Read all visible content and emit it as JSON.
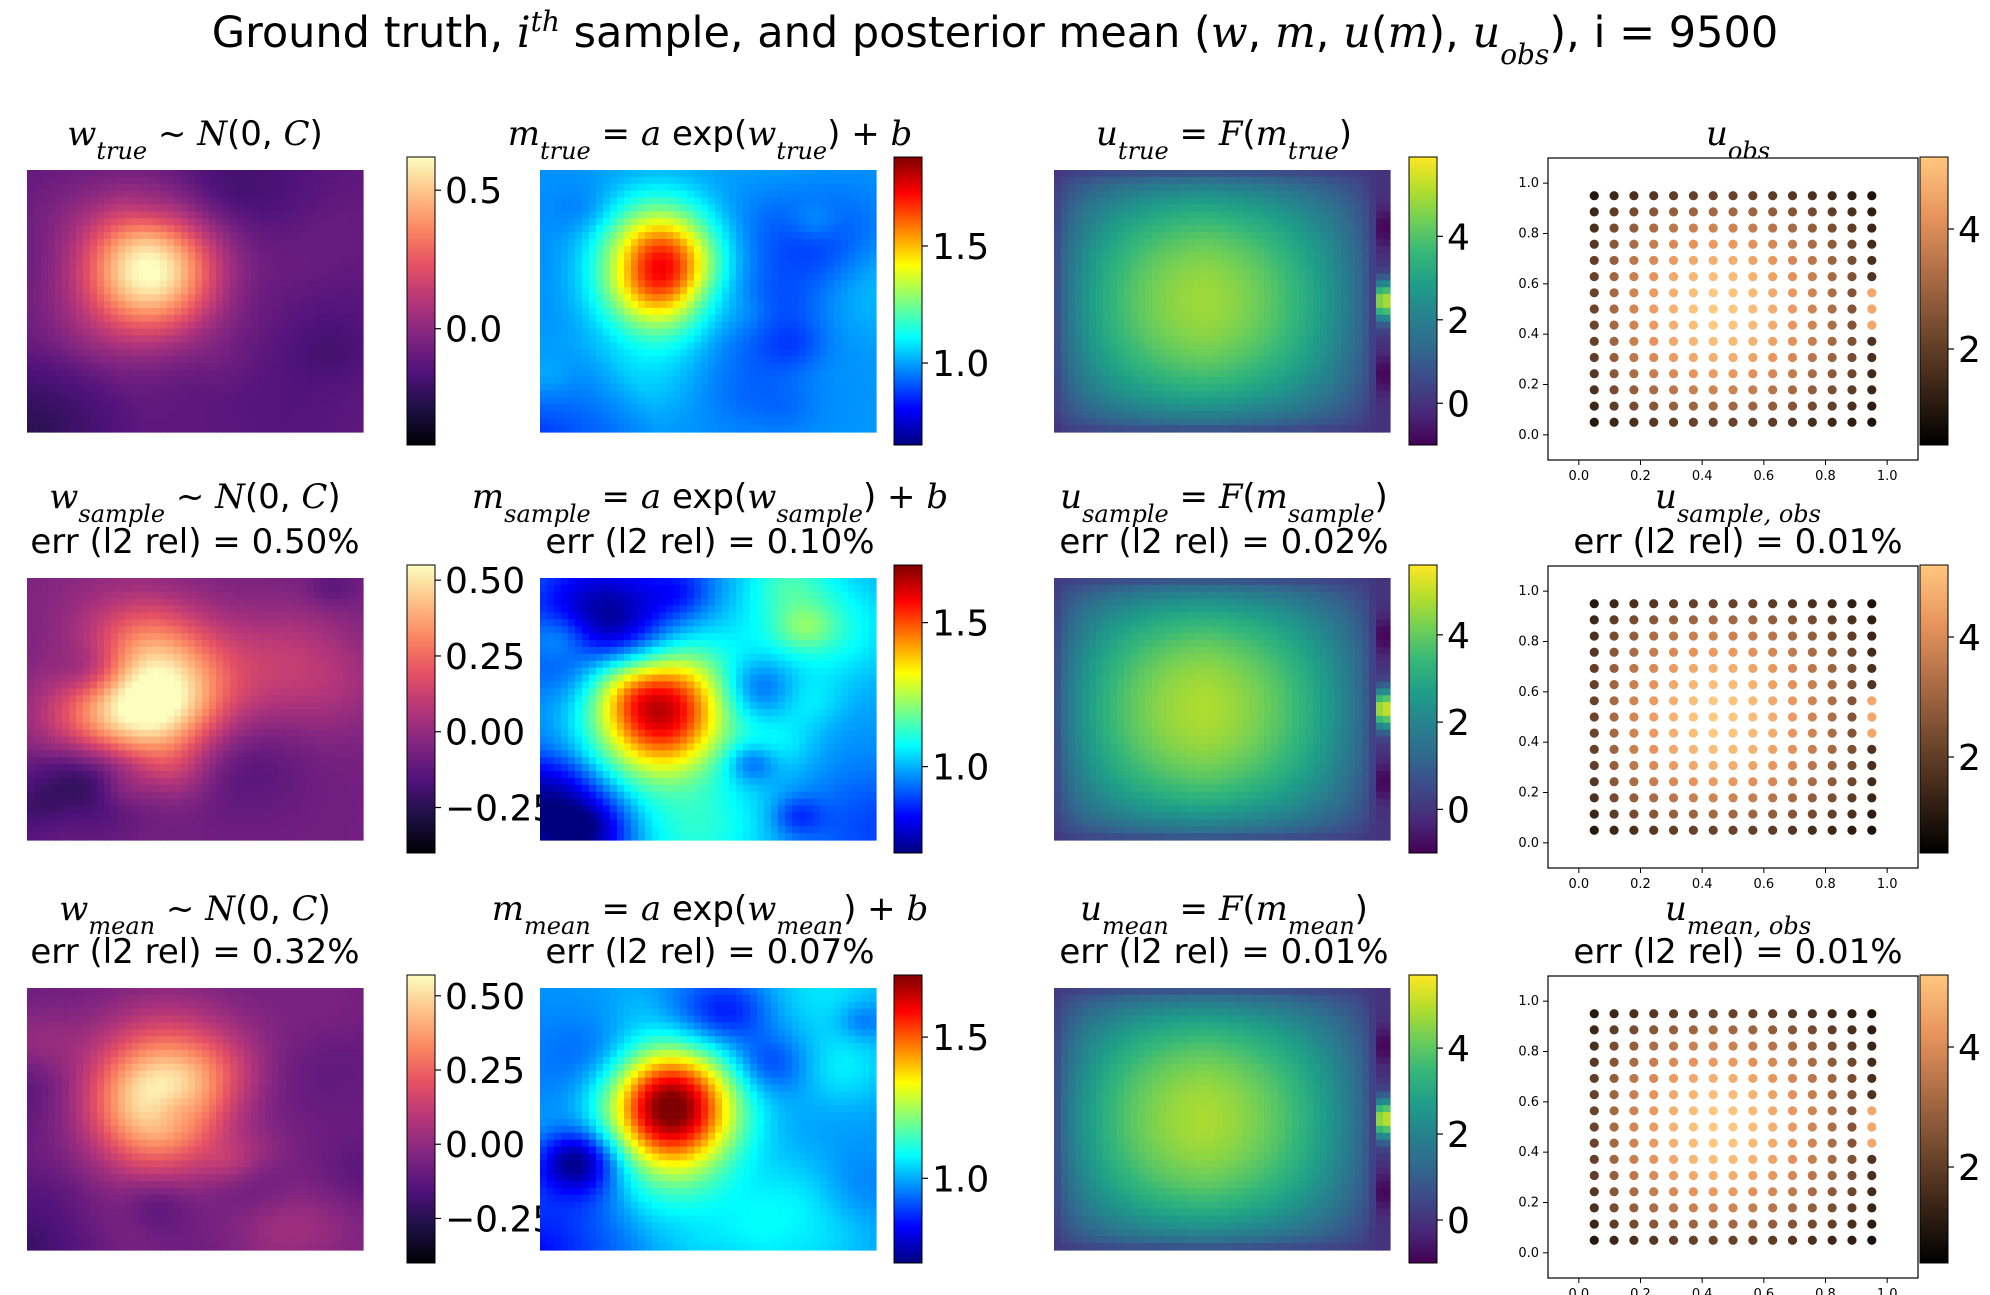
{
  "figure": {
    "title": "Ground truth, i^th sample, and posterior mean (w, m, u(m), u_obs), i = 9500"
  },
  "colors": {
    "magma": [
      "#000004",
      "#1c1044",
      "#4f127b",
      "#812581",
      "#b5367a",
      "#e55064",
      "#fb8761",
      "#fec287",
      "#fcfdbf"
    ],
    "jet": [
      "#00007f",
      "#0000ff",
      "#007fff",
      "#00ffff",
      "#7fff7f",
      "#ffff00",
      "#ff7f00",
      "#ff0000",
      "#7f0000"
    ],
    "viridis": [
      "#440154",
      "#482878",
      "#3e4989",
      "#31688e",
      "#26828e",
      "#1f9e89",
      "#35b779",
      "#6ece58",
      "#b5de2b",
      "#fde725"
    ],
    "copper": [
      "#000000",
      "#3a2517",
      "#744a2f",
      "#ae6f46",
      "#e8955d",
      "#ffc77f"
    ]
  },
  "rows": [
    {
      "panels": [
        {
          "title": "w_true ~ N(0, C)",
          "stat": ""
        },
        {
          "title": "m_true = a exp(w_true) + b",
          "stat": ""
        },
        {
          "title": "u_true = F(m_true)",
          "stat": ""
        },
        {
          "title": "u_obs",
          "stat": ""
        }
      ]
    },
    {
      "panels": [
        {
          "title": "w_sample ~ N(0, C)",
          "stat": "err (l2 rel) = 0.50%"
        },
        {
          "title": "m_sample = a exp(w_sample) + b",
          "stat": "err (l2 rel) = 0.10%"
        },
        {
          "title": "u_sample = F(m_sample)",
          "stat": "err (l2 rel) = 0.02%"
        },
        {
          "title": "u_sample,obs",
          "stat": "err (l2 rel) = 0.01%"
        }
      ]
    },
    {
      "panels": [
        {
          "title": "w_mean ~ N(0, C)",
          "stat": "err (l2 rel) = 0.32%"
        },
        {
          "title": "m_mean = a exp(w_mean) + b",
          "stat": "err (l2 rel) = 0.07%"
        },
        {
          "title": "u_mean = F(m_mean)",
          "stat": "err (l2 rel) = 0.01%"
        },
        {
          "title": "u_mean,obs",
          "stat": "err (l2 rel) = 0.01%"
        }
      ]
    }
  ],
  "chart_data": [
    {
      "type": "heatmap",
      "title": "w_true ~ N(0, C)",
      "colormap": "magma",
      "clim": [
        -0.42,
        0.62
      ],
      "colorbar_ticks": [
        "0.5",
        "0.0"
      ],
      "colorbar_tick_values": [
        0.5,
        0.0
      ],
      "field": {
        "base": -0.12,
        "blob_amp": 0.72,
        "blob_center": [
          0.36,
          0.62
        ],
        "blob_width": [
          0.14,
          0.18
        ],
        "texture": 0.05,
        "seed": 11
      }
    },
    {
      "type": "heatmap",
      "title": "m_true = a exp(w_true) + b",
      "colormap": "jet",
      "clim": [
        0.65,
        1.88
      ],
      "colorbar_ticks": [
        "1.5",
        "1.0"
      ],
      "colorbar_tick_values": [
        1.5,
        1.0
      ],
      "field": {
        "base": 0.98,
        "blob_amp": 0.85,
        "blob_center": [
          0.36,
          0.62
        ],
        "blob_width": [
          0.12,
          0.16
        ],
        "texture": 0.08,
        "seed": 12
      }
    },
    {
      "type": "heatmap",
      "title": "u_true = F(m_true)",
      "colormap": "viridis",
      "clim": [
        -1.0,
        5.9
      ],
      "colorbar_ticks": [
        "4",
        "2",
        "0"
      ],
      "colorbar_tick_values": [
        4,
        2,
        0
      ],
      "field": {
        "kind": "potential",
        "peak": 4.9,
        "center": [
          0.32,
          0.5
        ]
      }
    },
    {
      "type": "scatter",
      "title": "u_obs",
      "colormap": "copper",
      "clim": [
        0.4,
        5.2
      ],
      "colorbar_ticks": [
        "4",
        "2"
      ],
      "colorbar_tick_values": [
        4,
        2
      ],
      "xlim": [
        -0.1,
        1.1
      ],
      "ylim": [
        -0.1,
        1.1
      ],
      "xticks": [
        "0.0",
        "0.2",
        "0.4",
        "0.6",
        "0.8",
        "1.0"
      ],
      "yticks": [
        "0.0",
        "0.2",
        "0.4",
        "0.6",
        "0.8",
        "1.0"
      ],
      "grid": {
        "x_start": 0.05,
        "x_step": 0.0643,
        "nx": 15,
        "y_start": 0.05,
        "y_step": 0.0643,
        "ny": 15
      }
    },
    {
      "type": "heatmap",
      "title": "w_sample ~ N(0, C)",
      "colormap": "magma",
      "clim": [
        -0.4,
        0.55
      ],
      "colorbar_ticks": [
        "0.50",
        "0.25",
        "0.00",
        "−0.25"
      ],
      "colorbar_tick_values": [
        0.5,
        0.25,
        0.0,
        -0.25
      ],
      "field": {
        "base": -0.08,
        "blob_amp": 0.6,
        "blob_center": [
          0.36,
          0.55
        ],
        "blob_width": [
          0.16,
          0.2
        ],
        "texture": 0.14,
        "seed": 21
      }
    },
    {
      "type": "heatmap",
      "title": "m_sample = a exp(w_sample) + b",
      "colormap": "jet",
      "clim": [
        0.7,
        1.7
      ],
      "colorbar_ticks": [
        "1.5",
        "1.0"
      ],
      "colorbar_tick_values": [
        1.5,
        1.0
      ],
      "field": {
        "base": 0.98,
        "blob_amp": 0.68,
        "blob_center": [
          0.36,
          0.5
        ],
        "blob_width": [
          0.14,
          0.18
        ],
        "texture": 0.16,
        "seed": 22
      }
    },
    {
      "type": "heatmap",
      "title": "u_sample = F(m_sample)",
      "colormap": "viridis",
      "clim": [
        -1.0,
        5.6
      ],
      "colorbar_ticks": [
        "4",
        "2",
        "0"
      ],
      "colorbar_tick_values": [
        4,
        2,
        0
      ],
      "field": {
        "kind": "potential",
        "peak": 4.8,
        "center": [
          0.32,
          0.5
        ]
      }
    },
    {
      "type": "scatter",
      "title": "u_sample,obs",
      "colormap": "copper",
      "clim": [
        0.4,
        5.2
      ],
      "colorbar_ticks": [
        "4",
        "2"
      ],
      "colorbar_tick_values": [
        4,
        2
      ],
      "xlim": [
        -0.1,
        1.1
      ],
      "ylim": [
        -0.1,
        1.1
      ],
      "xticks": [
        "0.0",
        "0.2",
        "0.4",
        "0.6",
        "0.8",
        "1.0"
      ],
      "yticks": [
        "0.0",
        "0.2",
        "0.4",
        "0.6",
        "0.8",
        "1.0"
      ],
      "grid": {
        "x_start": 0.05,
        "x_step": 0.0643,
        "nx": 15,
        "y_start": 0.05,
        "y_step": 0.0643,
        "ny": 15
      }
    },
    {
      "type": "heatmap",
      "title": "w_mean ~ N(0, C)",
      "colormap": "magma",
      "clim": [
        -0.4,
        0.57
      ],
      "colorbar_ticks": [
        "0.50",
        "0.25",
        "0.00",
        "−0.25"
      ],
      "colorbar_tick_values": [
        0.5,
        0.25,
        0.0,
        -0.25
      ],
      "field": {
        "base": -0.09,
        "blob_amp": 0.62,
        "blob_center": [
          0.38,
          0.56
        ],
        "blob_width": [
          0.15,
          0.19
        ],
        "texture": 0.1,
        "seed": 31
      }
    },
    {
      "type": "heatmap",
      "title": "m_mean = a exp(w_mean) + b",
      "colormap": "jet",
      "clim": [
        0.7,
        1.72
      ],
      "colorbar_ticks": [
        "1.5",
        "1.0"
      ],
      "colorbar_tick_values": [
        1.5,
        1.0
      ],
      "field": {
        "base": 0.98,
        "blob_amp": 0.7,
        "blob_center": [
          0.38,
          0.55
        ],
        "blob_width": [
          0.13,
          0.17
        ],
        "texture": 0.11,
        "seed": 32
      }
    },
    {
      "type": "heatmap",
      "title": "u_mean = F(m_mean)",
      "colormap": "viridis",
      "clim": [
        -1.0,
        5.7
      ],
      "colorbar_ticks": [
        "4",
        "2",
        "0"
      ],
      "colorbar_tick_values": [
        4,
        2,
        0
      ],
      "field": {
        "kind": "potential",
        "peak": 4.85,
        "center": [
          0.32,
          0.5
        ]
      }
    },
    {
      "type": "scatter",
      "title": "u_mean,obs",
      "colormap": "copper",
      "clim": [
        0.4,
        5.2
      ],
      "colorbar_ticks": [
        "4",
        "2"
      ],
      "colorbar_tick_values": [
        4,
        2
      ],
      "xlim": [
        -0.1,
        1.1
      ],
      "ylim": [
        -0.1,
        1.1
      ],
      "xticks": [
        "0.0",
        "0.2",
        "0.4",
        "0.6",
        "0.8",
        "1.0"
      ],
      "yticks": [
        "0.0",
        "0.2",
        "0.4",
        "0.6",
        "0.8",
        "1.0"
      ],
      "grid": {
        "x_start": 0.05,
        "x_step": 0.0643,
        "nx": 15,
        "y_start": 0.05,
        "y_step": 0.0643,
        "ny": 15
      }
    }
  ]
}
